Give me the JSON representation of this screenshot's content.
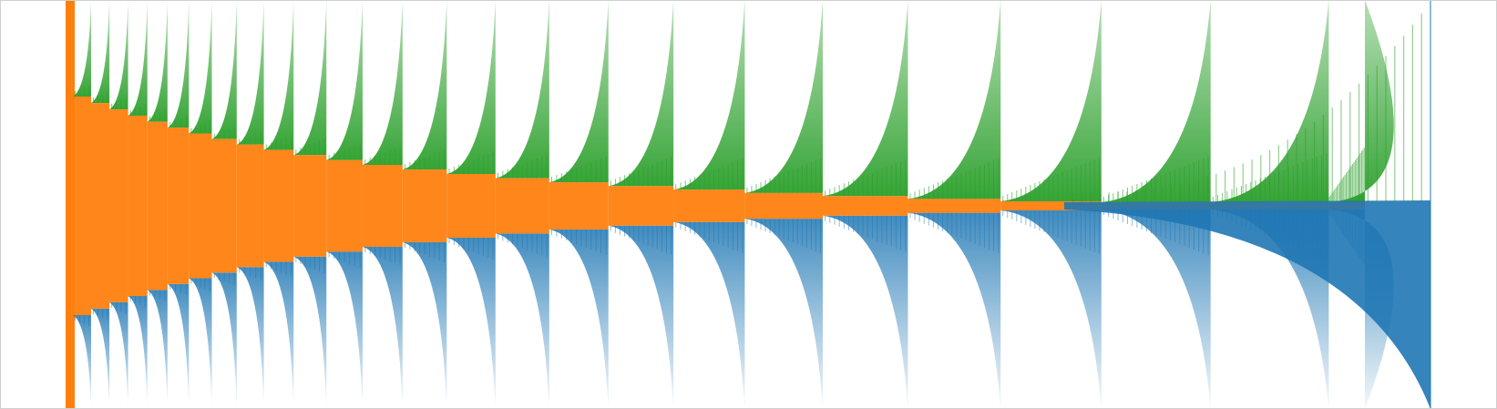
{
  "chart_data": {
    "type": "area",
    "title": "",
    "xlabel": "",
    "ylabel": "",
    "grid": false,
    "legend": "none",
    "colors": {
      "green": "#2ca02c",
      "orange": "#ff7f0e",
      "blue": "#1f77b4"
    },
    "tick_labels": [],
    "segments": [
      {
        "left": 0.0,
        "right": 0.022,
        "fan_width": 0.0,
        "green_tip": 0.0,
        "blue_tip": 0.0,
        "teeth": 0
      },
      {
        "left": 0.022,
        "right": 0.045,
        "fan_width": 0.0,
        "green_tip": 0.66,
        "blue_tip": 0.4,
        "teeth": 14
      },
      {
        "left": 0.045,
        "right": 0.069,
        "fan_width": 0.0,
        "green_tip": 0.64,
        "blue_tip": 0.4,
        "teeth": 14
      },
      {
        "left": 0.069,
        "right": 0.094,
        "fan_width": 0.0,
        "green_tip": 0.62,
        "blue_tip": 0.4,
        "teeth": 14
      },
      {
        "left": 0.094,
        "right": 0.12,
        "fan_width": 0.0,
        "green_tip": 0.6,
        "blue_tip": 0.4,
        "teeth": 14
      },
      {
        "left": 0.12,
        "right": 0.147,
        "fan_width": 0.0,
        "green_tip": 0.58,
        "blue_tip": 0.4,
        "teeth": 14
      },
      {
        "left": 0.147,
        "right": 0.175,
        "fan_width": 0.0,
        "green_tip": 0.56,
        "blue_tip": 0.4,
        "teeth": 14
      },
      {
        "left": 0.175,
        "right": 0.204,
        "fan_width": 0.0,
        "green_tip": 0.54,
        "blue_tip": 0.4,
        "teeth": 14
      },
      {
        "left": 0.204,
        "right": 0.234,
        "fan_width": 0.0,
        "green_tip": 0.52,
        "blue_tip": 0.4,
        "teeth": 14
      },
      {
        "left": 0.234,
        "right": 0.266,
        "fan_width": 0.0,
        "green_tip": 0.5,
        "blue_tip": 0.4,
        "teeth": 14
      },
      {
        "left": 0.266,
        "right": 0.299,
        "fan_width": 0.0,
        "green_tip": 0.48,
        "blue_tip": 0.4,
        "teeth": 14
      },
      {
        "left": 0.299,
        "right": 0.334,
        "fan_width": 0.0,
        "green_tip": 0.46,
        "blue_tip": 0.4,
        "teeth": 14
      },
      {
        "left": 0.334,
        "right": 0.371,
        "fan_width": 0.0,
        "green_tip": 0.44,
        "blue_tip": 0.4,
        "teeth": 14
      },
      {
        "left": 0.371,
        "right": 0.41,
        "fan_width": 0.0,
        "green_tip": 0.42,
        "blue_tip": 0.4,
        "teeth": 14
      },
      {
        "left": 0.41,
        "right": 0.452,
        "fan_width": 0.0,
        "green_tip": 0.4,
        "blue_tip": 0.4,
        "teeth": 14
      },
      {
        "left": 0.452,
        "right": 0.497,
        "fan_width": 0.0,
        "green_tip": 0.38,
        "blue_tip": 0.4,
        "teeth": 14
      },
      {
        "left": 0.497,
        "right": 0.546,
        "fan_width": 0.0,
        "green_tip": 0.36,
        "blue_tip": 0.4,
        "teeth": 14
      },
      {
        "left": 0.546,
        "right": 0.6,
        "fan_width": 0.0,
        "green_tip": 0.34,
        "blue_tip": 0.4,
        "teeth": 14
      },
      {
        "left": 0.6,
        "right": 0.66,
        "fan_width": 0.0,
        "green_tip": 0.32,
        "blue_tip": 0.4,
        "teeth": 14
      },
      {
        "left": 0.66,
        "right": 0.73,
        "fan_width": 0.0,
        "green_tip": 0.3,
        "blue_tip": 0.4,
        "teeth": 14
      },
      {
        "left": 0.73,
        "right": 0.815,
        "fan_width": 0.0,
        "green_tip": 0.28,
        "blue_tip": 0.4,
        "teeth": 14
      },
      {
        "left": 0.815,
        "right": 0.925,
        "fan_width": 0.0,
        "green_tip": 0.26,
        "blue_tip": 0.4,
        "teeth": 14
      },
      {
        "left": 0.925,
        "right": 1.0,
        "fan_width": 0.0,
        "green_tip": 0.24,
        "blue_tip": 0.4,
        "teeth": 14
      }
    ]
  }
}
